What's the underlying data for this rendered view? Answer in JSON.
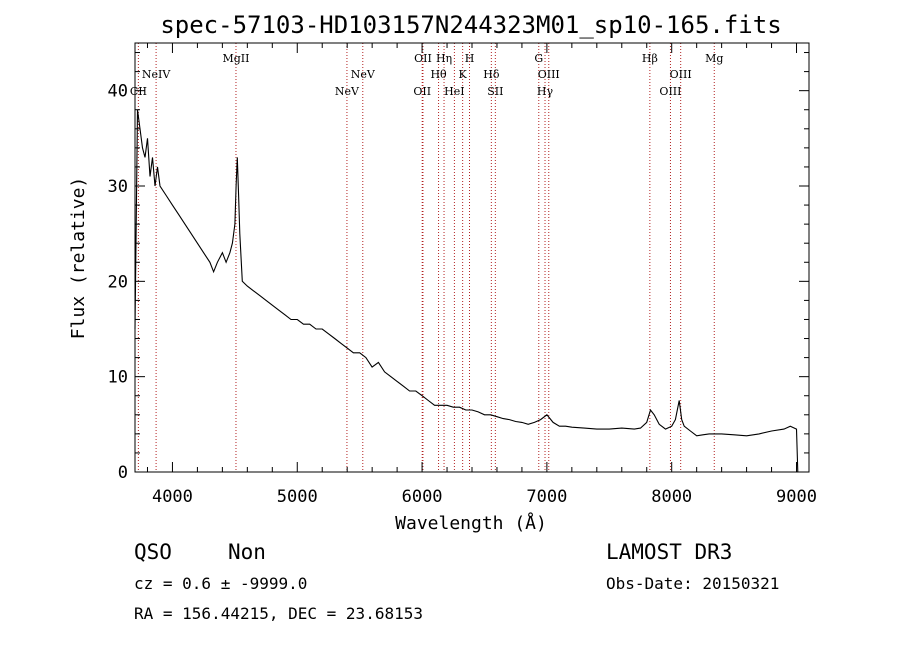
{
  "chart_data": {
    "type": "line",
    "title": "spec-57103-HD103157N244323M01_sp10-165.fits",
    "xlabel": "Wavelength (Å)",
    "ylabel": "Flux (relative)",
    "xlim": [
      3700,
      9100
    ],
    "ylim": [
      0,
      45
    ],
    "xticks": [
      4000,
      5000,
      6000,
      7000,
      8000,
      9000
    ],
    "yticks": [
      0,
      10,
      20,
      30,
      40
    ],
    "grid": false,
    "series": [
      {
        "x": [
          3700,
          3720,
          3740,
          3760,
          3780,
          3800,
          3820,
          3840,
          3860,
          3880,
          3900,
          3950,
          4000,
          4050,
          4100,
          4150,
          4200,
          4250,
          4300,
          4330,
          4360,
          4400,
          4430,
          4460,
          4480,
          4500,
          4510,
          4520,
          4530,
          4540,
          4560,
          4600,
          4650,
          4700,
          4750,
          4800,
          4850,
          4900,
          4950,
          5000,
          5050,
          5100,
          5150,
          5200,
          5250,
          5300,
          5350,
          5400,
          5450,
          5500,
          5550,
          5600,
          5650,
          5700,
          5750,
          5800,
          5850,
          5900,
          5950,
          6000,
          6050,
          6100,
          6150,
          6200,
          6250,
          6300,
          6350,
          6400,
          6450,
          6500,
          6550,
          6600,
          6650,
          6700,
          6750,
          6800,
          6850,
          6900,
          6950,
          7000,
          7050,
          7100,
          7150,
          7200,
          7300,
          7400,
          7500,
          7600,
          7700,
          7750,
          7800,
          7830,
          7860,
          7900,
          7950,
          8000,
          8030,
          8060,
          8080,
          8100,
          8150,
          8200,
          8250,
          8300,
          8400,
          8500,
          8600,
          8700,
          8800,
          8900,
          8950,
          9000,
          9010
        ],
        "y": [
          15,
          38,
          36,
          34,
          33,
          35,
          31,
          33,
          30,
          32,
          30,
          29,
          28,
          27,
          26,
          25,
          24,
          23,
          22,
          21,
          22,
          23,
          22,
          23,
          24,
          26,
          30,
          33,
          29,
          25,
          20,
          19.5,
          19,
          18.5,
          18,
          17.5,
          17,
          16.5,
          16,
          16,
          15.5,
          15.5,
          15,
          15,
          14.5,
          14,
          13.5,
          13,
          12.5,
          12.5,
          12,
          11,
          11.5,
          10.5,
          10,
          9.5,
          9,
          8.5,
          8.5,
          8,
          7.5,
          7,
          7,
          7,
          6.8,
          6.8,
          6.5,
          6.5,
          6.3,
          6,
          6,
          5.8,
          5.6,
          5.5,
          5.3,
          5.2,
          5,
          5.2,
          5.5,
          6,
          5.2,
          4.8,
          4.8,
          4.7,
          4.6,
          4.5,
          4.5,
          4.6,
          4.5,
          4.6,
          5.2,
          6.5,
          6,
          5,
          4.5,
          4.8,
          5.5,
          7.5,
          5.5,
          4.8,
          4.3,
          3.8,
          3.9,
          4,
          4,
          3.9,
          3.8,
          4,
          4.3,
          4.5,
          4.8,
          4.5,
          0
        ]
      }
    ],
    "lines": [
      {
        "x": 3727,
        "label": "CII",
        "row": 3
      },
      {
        "x": 3869,
        "label": "NeIV",
        "row": 2
      },
      {
        "x": 4509,
        "label": "MgII",
        "row": 1
      },
      {
        "x": 5398,
        "label": "NeV",
        "row": 3
      },
      {
        "x": 5525,
        "label": "NeV",
        "row": 2
      },
      {
        "x": 6001,
        "label": "OII",
        "row": 3
      },
      {
        "x": 6007,
        "label": "OII",
        "row": 1
      },
      {
        "x": 6132,
        "label": "Hθ",
        "row": 2
      },
      {
        "x": 6176,
        "label": "Hη",
        "row": 1
      },
      {
        "x": 6259,
        "label": "HeI",
        "row": 3
      },
      {
        "x": 6325,
        "label": "K",
        "row": 2
      },
      {
        "x": 6380,
        "label": "H",
        "row": 1
      },
      {
        "x": 6555,
        "label": "Hδ",
        "row": 2
      },
      {
        "x": 6587,
        "label": "SII",
        "row": 3
      },
      {
        "x": 6935,
        "label": "G",
        "row": 1
      },
      {
        "x": 6985,
        "label": "Hγ",
        "row": 3
      },
      {
        "x": 7015,
        "label": "OIII",
        "row": 2
      },
      {
        "x": 7825,
        "label": "Hβ",
        "row": 1
      },
      {
        "x": 7990,
        "label": "OIII",
        "row": 3
      },
      {
        "x": 8072,
        "label": "OIII",
        "row": 2
      },
      {
        "x": 8341,
        "label": "Mg",
        "row": 1
      }
    ]
  },
  "info": {
    "class": "QSO",
    "subclass": "Non",
    "cz": "cz = 0.6 ± -9999.0",
    "coords": "RA = 156.44215, DEC =  23.68153",
    "survey": "LAMOST DR3",
    "obs_date": "Obs-Date: 20150321"
  },
  "colors": {
    "spectrum": "#000000",
    "line_marker": "#b22222",
    "axes": "#000000"
  }
}
